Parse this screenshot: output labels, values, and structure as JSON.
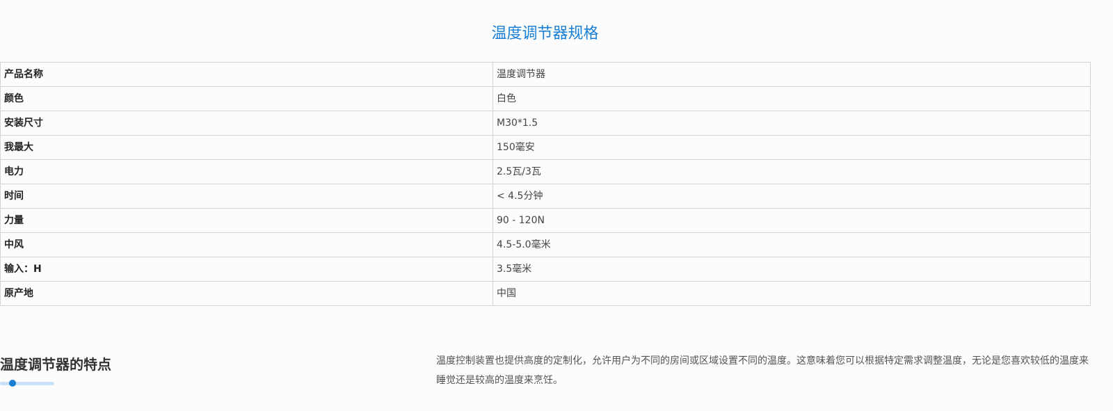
{
  "title": "温度调节器规格",
  "specs": [
    {
      "key": "产品名称",
      "value": "温度调节器"
    },
    {
      "key": "颜色",
      "value": "白色"
    },
    {
      "key": "安装尺寸",
      "value": "M30*1.5"
    },
    {
      "key": "我最大",
      "value": "150毫安"
    },
    {
      "key": "电力",
      "value": "2.5瓦/3瓦"
    },
    {
      "key": "时间",
      "value": "< 4.5分钟"
    },
    {
      "key": "力量",
      "value": "90 - 120N"
    },
    {
      "key": "中风",
      "value": "4.5-5.0毫米"
    },
    {
      "key": "输入：H",
      "value": "3.5毫米"
    },
    {
      "key": "原产地",
      "value": "中国"
    }
  ],
  "features": {
    "heading": "温度调节器的特点",
    "paragraph": "温度控制装置也提供高度的定制化，允许用户为不同的房间或区域设置不同的温度。这意味着您可以根据特定需求调整温度，无论是您喜欢较低的温度来睡觉还是较高的温度来烹饪。",
    "accent_color": "#1a7fd4"
  }
}
